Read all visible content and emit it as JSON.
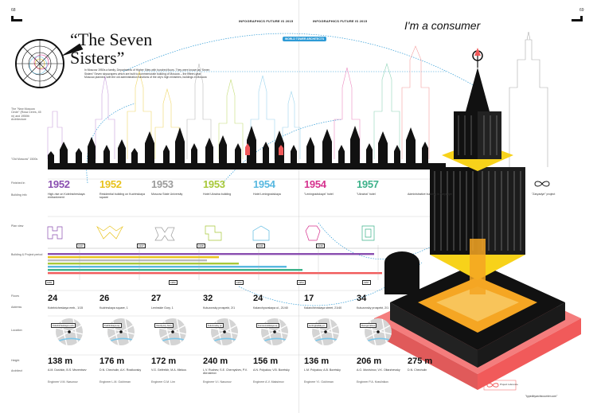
{
  "page": {
    "left_page_number": "68",
    "right_page_number": "69",
    "left_header": "INFOGRAPHICS FUTURE IS 2015",
    "right_header": "INFOGRAPHICS FUTURE IS 2015",
    "section_title": "I'm a consumer",
    "footer_url": "\"typedbyarchicourrier.com\""
  },
  "article": {
    "title": "“The Seven Sisters”",
    "intro": "In Moscow 1950s a family, Departments of Higher Sites with hundred floors. They were known as “Seven Sisters” Seven skyscrapers which are built to commemorate building of Moscow – the fifteen-year Moscow-planned, with the old administration functions of the city's high ministries, buildings in Moscow",
    "stamp": "WORLD TOWER ARCHITECTS",
    "new_label": "The \"New Moscow Circle\" (Rosa Ceres, 45 m) and 1950th Architecture",
    "old_label": "\"Old Moscow\" 1500s"
  },
  "row_labels": {
    "finished": "Finished in",
    "building": "Building info",
    "plan": "Plan view",
    "construction": "Building & Project period",
    "floors": "Floors",
    "address": "Address",
    "location": "Location",
    "height": "Height",
    "architect": "Architect"
  },
  "buildings": [
    {
      "year": "1952",
      "color": "#8a4fb0",
      "desc": "High-rise on Kotelnicheskaya embankment",
      "floors": "24",
      "address": "Kotelnicheskaya emb., 1/15",
      "map_tag": "Kotelnicheskaya emb.",
      "height": "138 m",
      "architect": "A.M. Dushkin, B.S. Mezentsev",
      "engineer": "Engineer V.M. Nasonov"
    },
    {
      "year": "1952",
      "color": "#e8c21c",
      "desc": "Residential building on Kudrinskaya square",
      "floors": "26",
      "address": "Kudrinskaya square, 1",
      "map_tag": "Kudrinskaya sq.",
      "height": "176 m",
      "architect": "D.N. Chechulin, A.K. Rostkovsky",
      "engineer": "Engineer L.M. Gokhman"
    },
    {
      "year": "1953",
      "color": "#9c9c9c",
      "desc": "Moscow State University",
      "floors": "27",
      "address": "Leninskie Gory, 1",
      "map_tag": "Vorobyovy Gory",
      "height": "172 m",
      "architect": "V.G. Gelfreikh, M.A. Minkus",
      "engineer": "Engineer G.M. Lim"
    },
    {
      "year": "1953",
      "color": "#a8c83a",
      "desc": "Hotel Ukraina building",
      "floors": "32",
      "address": "Kutuzovsky prospekt, 2/1",
      "map_tag": "Kutuzovsky pr.",
      "height": "240 m",
      "architect": "L.V. Rudnev, S.E. Chernyshev, P.V. Abrosimov",
      "engineer": "Engineer V.I. Nasonov"
    },
    {
      "year": "1954",
      "color": "#58b8e0",
      "desc": "Hotel Leningradskaya",
      "floors": "24",
      "address": "Kalanchyovskaya ul., 21/40",
      "map_tag": "Komsomolskaya sq.",
      "height": "156 m",
      "architect": "A.N. Polyakov, V.B. Boretsky",
      "engineer": "Engineer A.V. Maksimov"
    },
    {
      "year": "1954",
      "color": "#d6338f",
      "desc": "\"Leningradskaya\" hotel",
      "floors": "17",
      "address": "Kalanchevskaya street, 21/40",
      "map_tag": "Leningradsky pr.",
      "height": "136 m",
      "architect": "L.M. Polyakov, A.B. Boretsky",
      "engineer": "Engineer Y.I. Gokhman"
    },
    {
      "year": "1957",
      "color": "#3db28a",
      "desc": "\"Ukraina\" hotel",
      "floors": "34",
      "address": "Kutuzovsky prospekt, 2/1",
      "map_tag": "Dorogomilovo",
      "height": "206 m",
      "architect": "A.G. Mordvinov, V.K. Oltarzhevsky",
      "engineer": "Engineer P.A. Krasilnikov"
    },
    {
      "year": "",
      "color": "#9c9c9c",
      "desc": "Administrative building in Zaryadye",
      "floors": "",
      "address": "",
      "map_tag": "",
      "height": "275 m",
      "architect": "D.N. Chechulin",
      "engineer": ""
    }
  ],
  "bonus": {
    "desc": "\"Zaryadye\" project"
  },
  "timeline": {
    "start_labels": [
      "1947",
      "1947",
      "1948",
      "1949",
      "1949"
    ],
    "end_labels": [
      "1951",
      "1953",
      "1953",
      "1954",
      "1957"
    ]
  },
  "legend": {
    "text": "Project reference"
  },
  "colors": {
    "accent_red": "#f15a5a",
    "highlight_yellow": "#f7d21a",
    "highlight_orange": "#f5a623",
    "dotted_blue": "#2e9bd6"
  }
}
